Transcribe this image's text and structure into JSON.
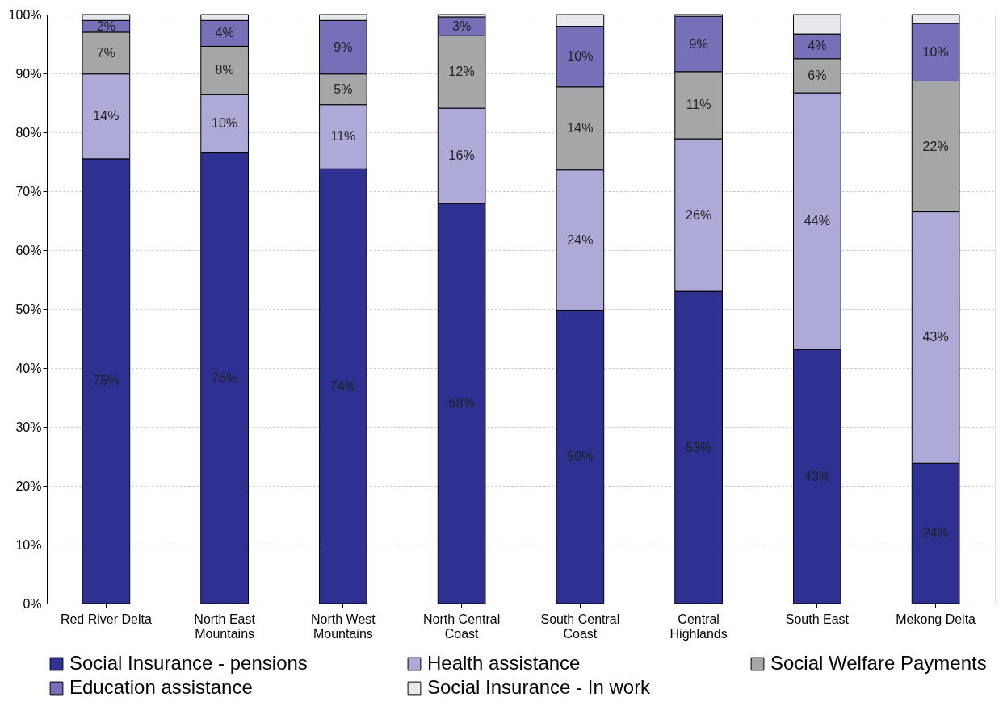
{
  "chart_data": {
    "type": "bar",
    "stacked": true,
    "categories": [
      "Red River Delta",
      "North East Mountains",
      "North West Mountains",
      "North Central Coast",
      "South Central Coast",
      "Central Highlands",
      "South East",
      "Mekong Delta"
    ],
    "series": [
      {
        "name": "Social Insurance - pensions",
        "color": "#2e3192",
        "values": [
          75.5,
          76.5,
          73.8,
          67.9,
          49.8,
          53.0,
          43.1,
          23.8
        ],
        "value_labels": [
          "75%",
          "76%",
          "74%",
          "68%",
          "50%",
          "53%",
          "43%",
          "24%"
        ]
      },
      {
        "name": "Health assistance",
        "color": "#aeaad8",
        "values": [
          14.4,
          9.9,
          10.9,
          16.2,
          23.8,
          25.9,
          43.6,
          42.7
        ],
        "value_labels": [
          "14%",
          "10%",
          "11%",
          "16%",
          "24%",
          "26%",
          "44%",
          "43%"
        ]
      },
      {
        "name": "Social Welfare Payments",
        "color": "#a6a6a8",
        "values": [
          7.1,
          8.2,
          5.2,
          12.3,
          14.1,
          11.4,
          5.8,
          22.2
        ],
        "value_labels": [
          "7%",
          "8%",
          "5%",
          "12%",
          "14%",
          "11%",
          "6%",
          "22%"
        ]
      },
      {
        "name": "Education assistance",
        "color": "#7570b8",
        "values": [
          2.0,
          4.4,
          9.1,
          3.2,
          10.3,
          9.4,
          4.2,
          9.8
        ],
        "value_labels": [
          "2%",
          "4%",
          "9%",
          "3%",
          "10%",
          "9%",
          "4%",
          "10%"
        ]
      },
      {
        "name": "Social Insurance - In work",
        "color": "#e8e8ee",
        "values": [
          1.0,
          1.0,
          1.0,
          0.4,
          2.0,
          0.3,
          3.3,
          1.5
        ],
        "value_labels": [
          null,
          null,
          null,
          null,
          null,
          null,
          null,
          null
        ]
      }
    ],
    "ylim": [
      0,
      100
    ],
    "yticks": [
      {
        "value": 0,
        "label": "0%"
      },
      {
        "value": 10,
        "label": "10%"
      },
      {
        "value": 20,
        "label": "20%"
      },
      {
        "value": 30,
        "label": "30%"
      },
      {
        "value": 40,
        "label": "40%"
      },
      {
        "value": 50,
        "label": "50%"
      },
      {
        "value": 60,
        "label": "60%"
      },
      {
        "value": 70,
        "label": "70%"
      },
      {
        "value": 80,
        "label": "80%"
      },
      {
        "value": 90,
        "label": "90%"
      },
      {
        "value": 100,
        "label": "100%"
      }
    ],
    "grid": "y",
    "legend": "bottom"
  }
}
